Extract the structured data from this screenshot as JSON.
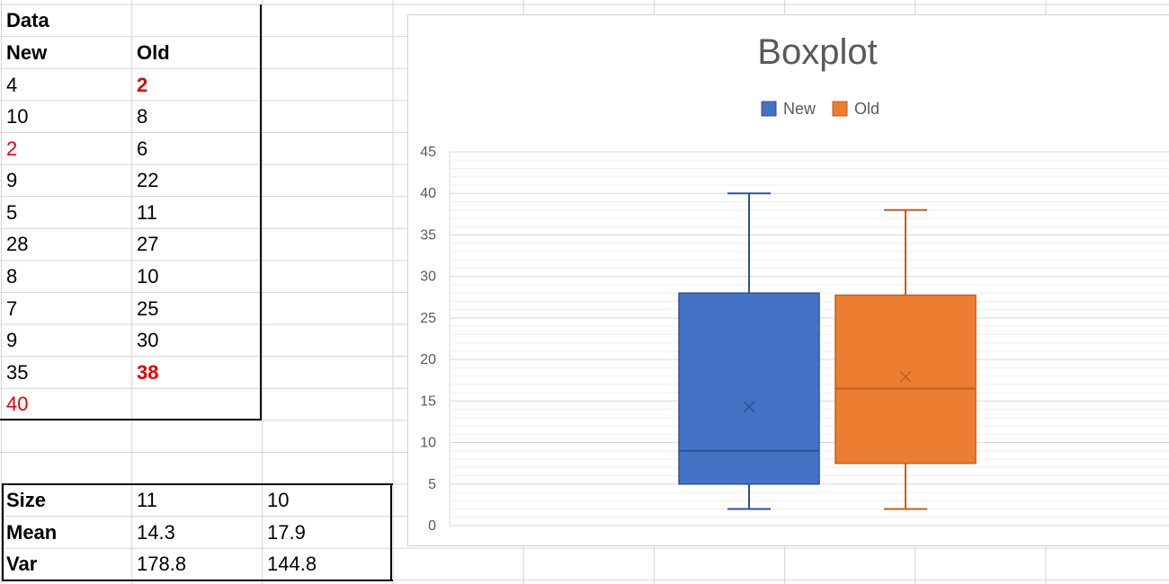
{
  "sheet": {
    "header": {
      "data_label": "Data",
      "col_new": "New",
      "col_old": "Old"
    },
    "rows": [
      {
        "new": "4",
        "old": "2"
      },
      {
        "new": "10",
        "old": "8"
      },
      {
        "new": "2",
        "old": "6"
      },
      {
        "new": "9",
        "old": "22"
      },
      {
        "new": "5",
        "old": "11"
      },
      {
        "new": "28",
        "old": "27"
      },
      {
        "new": "8",
        "old": "10"
      },
      {
        "new": "7",
        "old": "25"
      },
      {
        "new": "9",
        "old": "30"
      },
      {
        "new": "35",
        "old": "38"
      },
      {
        "new": "40",
        "old": ""
      }
    ],
    "highlight_color": "#e00000",
    "stats": {
      "size_label": "Size",
      "size_new": "11",
      "size_old": "10",
      "mean_label": "Mean",
      "mean_new": "14.3",
      "mean_old": "17.9",
      "var_label": "Var",
      "var_new": "178.8",
      "var_old": "144.8"
    }
  },
  "chart_data": {
    "type": "boxplot",
    "title": "Boxplot",
    "legend": [
      "New",
      "Old"
    ],
    "legend_placement": "top",
    "grid": true,
    "ylim": [
      0,
      45
    ],
    "yticks": [
      0,
      5,
      10,
      15,
      20,
      25,
      30,
      35,
      40,
      45
    ],
    "series": [
      {
        "name": "New",
        "color": "#4472c4",
        "stroke": "#2f528f",
        "min": 2,
        "q1": 5,
        "median": 9,
        "q3": 28,
        "max": 40,
        "mean": 14.3
      },
      {
        "name": "Old",
        "color": "#ed7d31",
        "stroke": "#c0601f",
        "min": 2,
        "q1": 7.5,
        "median": 16.5,
        "q3": 27.75,
        "max": 38,
        "mean": 17.9
      }
    ]
  }
}
